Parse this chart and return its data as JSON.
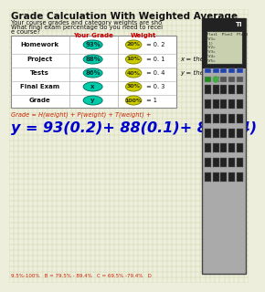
{
  "title": "Grade Calculation With Weighted Average",
  "bg_color": "#eeeedd",
  "grid_color": "#c8d4a0",
  "intro_line1": "Your course grades and category weights are sho",
  "intro_line2": "What final exam percentage do you need to recei",
  "intro_line3": "e course?",
  "col_header1": "Your Grade",
  "col_header2": "Weight",
  "col_header_color": "#cc0000",
  "rows": [
    {
      "label": "Homework",
      "grade": "93%",
      "wpct": "20%",
      "wrest": " = 0. 2"
    },
    {
      "label": "Project",
      "grade": "88%",
      "wpct": "10%",
      "wrest": " = 0. 1"
    },
    {
      "label": "Tests",
      "grade": "86%",
      "wpct": "40%",
      "wrest": " = 0. 4"
    },
    {
      "label": "Final Exam",
      "grade": "x",
      "wpct": "30%",
      "wrest": " = 0. 3"
    },
    {
      "label": "Grade",
      "grade": "y",
      "wpct": "100%",
      "wrest": " = 1"
    }
  ],
  "grade_bubble_color": "#00ccaa",
  "grade_bubble_edge": "#007766",
  "weight_bubble_color": "#cccc00",
  "weight_bubble_edge": "#888800",
  "side_text1": "x = the fi",
  "side_text2": "y = the",
  "formula_text": "Grade = H(weight) + P(weight) + T(weight) +",
  "formula_color": "#cc2200",
  "equation_text": "y = 93(0.2)+ 88(0.1)+ 86(0.4)",
  "equation_color": "#0000cc",
  "bottom_text": "9.5%-100%   B = 79.5% - 89.4%   C = 69.5% -79.4%   D",
  "bottom_color": "#cc2200",
  "calc_body_color": "#999999",
  "calc_screen_bg": "#c8d0b0",
  "calc_top_color": "#222222"
}
